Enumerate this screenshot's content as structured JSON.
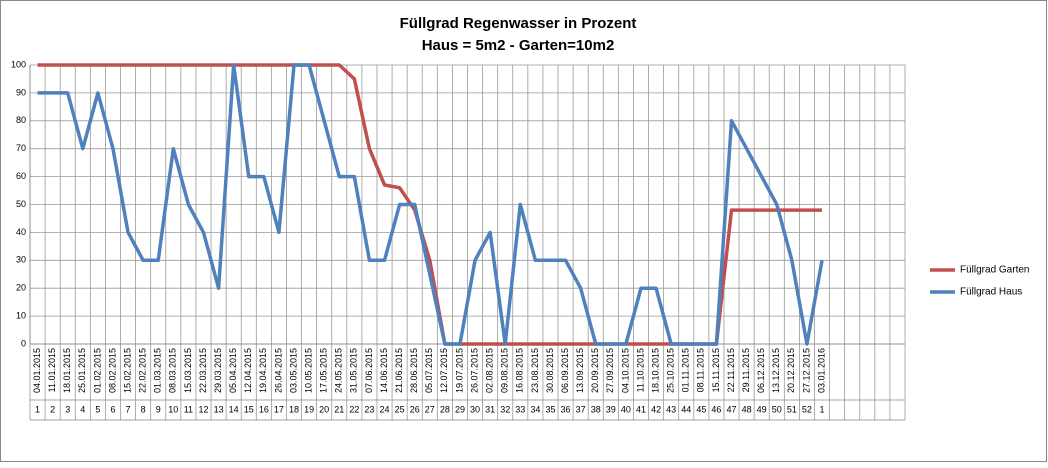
{
  "chart_data": {
    "type": "line",
    "title": "Füllgrad Regenwasser in Prozent",
    "subtitle": "Haus = 5m2 - Garten=10m2",
    "categories": [
      "04.01.2015",
      "11.01.2015",
      "18.01.2015",
      "25.01.2015",
      "01.02.2015",
      "08.02.2015",
      "15.02.2015",
      "22.02.2015",
      "01.03.2015",
      "08.03.2015",
      "15.03.2015",
      "22.03.2015",
      "29.03.2015",
      "05.04.2015",
      "12.04.2015",
      "19.04.2015",
      "26.04.2015",
      "03.05.2015",
      "10.05.2015",
      "17.05.2015",
      "24.05.2015",
      "31.05.2015",
      "07.06.2015",
      "14.06.2015",
      "21.06.2015",
      "28.06.2015",
      "05.07.2015",
      "12.07.2015",
      "19.07.2015",
      "26.07.2015",
      "02.08.2015",
      "09.08.2015",
      "16.08.2015",
      "23.08.2015",
      "30.08.2015",
      "06.09.2015",
      "13.09.2015",
      "20.09.2015",
      "27.09.2015",
      "04.10.2015",
      "11.10.2015",
      "18.10.2015",
      "25.10.2015",
      "01.11.2015",
      "08.11.2015",
      "15.11.2015",
      "22.11.2015",
      "29.11.2015",
      "06.12.2015",
      "13.12.2015",
      "20.12.2015",
      "27.12.2015",
      "03.01.2016",
      null,
      null,
      null,
      null,
      null
    ],
    "weeks": [
      "1",
      "2",
      "3",
      "4",
      "5",
      "6",
      "7",
      "8",
      "9",
      "10",
      "11",
      "12",
      "13",
      "14",
      "15",
      "16",
      "17",
      "18",
      "19",
      "20",
      "21",
      "22",
      "23",
      "24",
      "25",
      "26",
      "27",
      "28",
      "29",
      "30",
      "31",
      "32",
      "33",
      "34",
      "35",
      "36",
      "37",
      "38",
      "39",
      "40",
      "41",
      "42",
      "43",
      "44",
      "45",
      "46",
      "47",
      "48",
      "49",
      "50",
      "51",
      "52",
      "1",
      null,
      null,
      null,
      null,
      null
    ],
    "series": [
      {
        "name": "Füllgrad Garten",
        "color": "#c0504d",
        "values": [
          100,
          100,
          100,
          100,
          100,
          100,
          100,
          100,
          100,
          100,
          100,
          100,
          100,
          100,
          100,
          100,
          100,
          100,
          100,
          100,
          100,
          95,
          70,
          57,
          56,
          48,
          30,
          0,
          0,
          0,
          0,
          0,
          0,
          0,
          0,
          0,
          0,
          0,
          0,
          0,
          0,
          0,
          0,
          0,
          0,
          0,
          48,
          48,
          48,
          48,
          48,
          48,
          48,
          null,
          null,
          null,
          null,
          null
        ]
      },
      {
        "name": "Füllgrad Haus",
        "color": "#4f81bd",
        "values": [
          90,
          90,
          90,
          70,
          90,
          70,
          40,
          30,
          30,
          70,
          50,
          40,
          20,
          100,
          60,
          60,
          40,
          100,
          100,
          80,
          60,
          60,
          30,
          30,
          50,
          50,
          25,
          0,
          0,
          30,
          40,
          0,
          50,
          30,
          30,
          30,
          20,
          0,
          0,
          0,
          20,
          20,
          0,
          0,
          0,
          0,
          80,
          70,
          60,
          50,
          30,
          0,
          30,
          null,
          null,
          null,
          null,
          null
        ]
      }
    ],
    "ylim": [
      0,
      100
    ],
    "yticks": [
      0,
      10,
      20,
      30,
      40,
      50,
      60,
      70,
      80,
      90,
      100
    ],
    "grid": true,
    "legend": "right"
  }
}
